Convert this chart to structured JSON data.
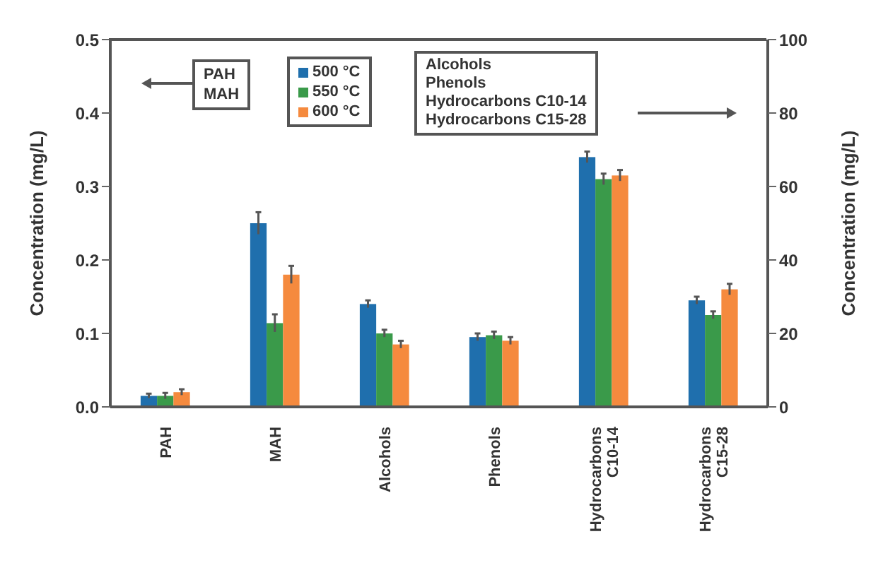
{
  "chart_data": {
    "type": "bar",
    "ylabel": "Concentration (mg/L)",
    "y2label": "Concentration (mg/L)",
    "categories": [
      "PAH",
      "MAH",
      "Alcohols",
      "Phenols",
      "Hydrocarbons C10-14",
      "Hydrocarbons C15-28"
    ],
    "series": [
      {
        "name": "500 °C",
        "color": "#1f6fad",
        "values": [
          0.015,
          0.25,
          null,
          null,
          null,
          null
        ],
        "errors": [
          0.003,
          0.015,
          null,
          null,
          null,
          null
        ]
      },
      {
        "name": "550 °C",
        "color": "#3a9a4a",
        "values": [
          0.015,
          0.114,
          null,
          null,
          null,
          null
        ],
        "errors": [
          0.004,
          0.012,
          null,
          null,
          null,
          null
        ]
      },
      {
        "name": "600 °C",
        "color": "#f58a3e",
        "values": [
          0.02,
          0.18,
          null,
          null,
          null,
          null
        ],
        "errors": [
          0.004,
          0.012,
          null,
          null,
          null,
          null
        ]
      },
      {
        "color": "#1f6fad",
        "axis": "y2",
        "values": [
          null,
          null,
          28,
          19,
          68,
          29
        ],
        "errors": [
          null,
          null,
          1,
          1,
          1.5,
          1
        ]
      },
      {
        "color": "#3a9a4a",
        "axis": "y2",
        "values": [
          null,
          null,
          20,
          19.5,
          62,
          25
        ],
        "errors": [
          null,
          null,
          1,
          1,
          1.5,
          1
        ]
      },
      {
        "color": "#f58a3e",
        "axis": "y2",
        "values": [
          null,
          null,
          17,
          18,
          63,
          32
        ],
        "errors": [
          null,
          null,
          1,
          1,
          1.5,
          1.5
        ]
      }
    ],
    "ylim": [
      0,
      0.5
    ],
    "yticks": [
      {
        "value": 0,
        "label": "0.0"
      },
      0.1,
      0.2,
      0.3,
      0.4,
      0.5
    ],
    "y2lim": [
      0,
      100
    ],
    "y2ticks": [
      0,
      20,
      40,
      60,
      80,
      100
    ],
    "annotations": [
      "PAH\nMAH",
      "Alcohols\nPhenols\nHydrocarbons C10-14\nHydrocarbons C15-28"
    ],
    "legend": "top",
    "grid": false
  }
}
